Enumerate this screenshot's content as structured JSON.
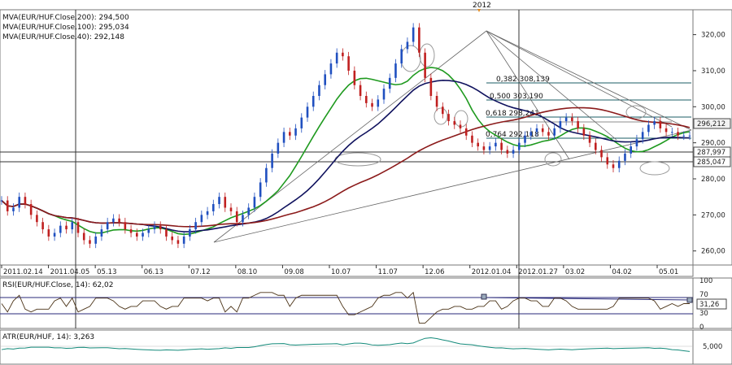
{
  "top_date_label": "2012",
  "main_legend": [
    {
      "text": "MVA(EUR/HUF.Close,200): 294,500",
      "color": "#8b1a1a"
    },
    {
      "text": "MVA(EUR/HUF.Close,100): 295,034",
      "color": "#10125e"
    },
    {
      "text": "MVA(EUR/HUF.Close,40): 292,148",
      "color": "#1f9a1f"
    }
  ],
  "rsi_legend": "RSI(EUR/HUF.Close, 14): 62,02",
  "atr_legend": "ATR(EUR/HUF, 14): 3,263",
  "price_axis_labels": [
    "320,00",
    "310,00",
    "300,00",
    "290,00",
    "280,00",
    "270,00",
    "260,00"
  ],
  "price_markers": {
    "current": "296,212",
    "level1": "287,997",
    "level2": "285,047"
  },
  "rsi_axis_labels": [
    "100",
    "70",
    "50",
    "30",
    "0"
  ],
  "rsi_marker": "31,26",
  "atr_axis_label": "5,000",
  "x_labels": [
    "2011.02.14",
    "2011.04.05",
    "05.13",
    "06.13",
    "07.12",
    "08.10",
    "09.08",
    "10.07",
    "11.07",
    "12.06",
    "2012.01.04",
    "2012.01.27",
    "03.02",
    "04.02",
    "05.01"
  ],
  "fib_labels": [
    "0,382 308,139",
    "0,500 303,190",
    "0,618 298,241",
    "0,764 292,118"
  ],
  "chart_data": {
    "type": "candlestick",
    "instrument": "EUR/HUF",
    "ylim": [
      257,
      326
    ],
    "yticks": [
      320,
      310,
      300,
      290,
      280,
      270,
      260
    ],
    "series": [
      {
        "name": "EUR/HUF",
        "x": [
          0,
          4,
          8,
          12,
          16,
          20,
          24,
          28,
          32,
          36,
          40,
          44,
          48,
          52,
          56,
          60,
          64,
          68,
          72,
          76,
          80,
          84,
          88,
          92,
          96,
          100,
          104,
          108,
          112,
          116,
          120,
          124,
          128,
          132,
          136,
          140,
          144,
          148,
          152,
          156,
          160,
          164,
          168,
          172,
          176,
          180,
          184,
          188,
          192,
          196,
          200,
          204,
          208,
          212,
          216,
          220,
          224,
          228,
          232,
          236,
          240,
          244,
          248,
          252,
          256,
          260,
          264,
          268,
          272,
          276,
          280,
          284,
          288,
          292,
          296,
          300,
          304,
          308,
          312,
          316,
          320,
          324,
          328,
          332,
          336,
          340,
          344,
          348,
          352,
          356,
          360,
          364,
          368,
          372,
          376,
          380,
          384,
          388,
          392,
          396,
          400,
          404,
          408,
          412,
          416,
          420,
          424,
          428,
          432,
          436,
          440,
          444,
          448,
          452,
          456,
          460,
          464,
          468
        ],
        "values": [
          274,
          271,
          272,
          275,
          273,
          270,
          268,
          266,
          264,
          265,
          267,
          266,
          268,
          265,
          263,
          262,
          264,
          266,
          268,
          269,
          268,
          266,
          265,
          264,
          265,
          266,
          267,
          266,
          264,
          263,
          262,
          264,
          266,
          268,
          270,
          271,
          273,
          275,
          272,
          271,
          268,
          270,
          272,
          275,
          279,
          283,
          287,
          290,
          293,
          292,
          294,
          297,
          300,
          303,
          306,
          309,
          312,
          315,
          314,
          310,
          306,
          303,
          301,
          300,
          302,
          305,
          308,
          312,
          316,
          318,
          322,
          315,
          308,
          303,
          300,
          298,
          296,
          295,
          294,
          292,
          290,
          289,
          288,
          289,
          290,
          288,
          287,
          288,
          290,
          292,
          293,
          294,
          293,
          292,
          294,
          296,
          297,
          296,
          294,
          292,
          290,
          288,
          286,
          284,
          283,
          285,
          287,
          289,
          291,
          293,
          295,
          296,
          294,
          293,
          293,
          292,
          292,
          292
        ]
      }
    ],
    "overlays": [
      {
        "name": "MVA(EUR/HUF.Close,200)",
        "last": 294.5
      },
      {
        "name": "MVA(EUR/HUF.Close,100)",
        "last": 295.034
      },
      {
        "name": "MVA(EUR/HUF.Close,40)",
        "last": 292.148
      }
    ],
    "fibonacci": [
      {
        "ratio": 0.382,
        "price": 308.139
      },
      {
        "ratio": 0.5,
        "price": 303.19
      },
      {
        "ratio": 0.618,
        "price": 298.241
      },
      {
        "ratio": 0.764,
        "price": 292.118
      }
    ],
    "horizontal_levels": [
      296.212,
      287.997,
      285.047
    ],
    "rsi": {
      "name": "RSI(EUR/HUF.Close, 14)",
      "last": 62.02,
      "ylim": [
        0,
        100
      ],
      "levels": [
        70,
        50,
        30
      ],
      "marker": 31.26
    },
    "atr": {
      "name": "ATR(EUR/HUF, 14)",
      "last": 3.263,
      "tick": 5.0
    }
  }
}
